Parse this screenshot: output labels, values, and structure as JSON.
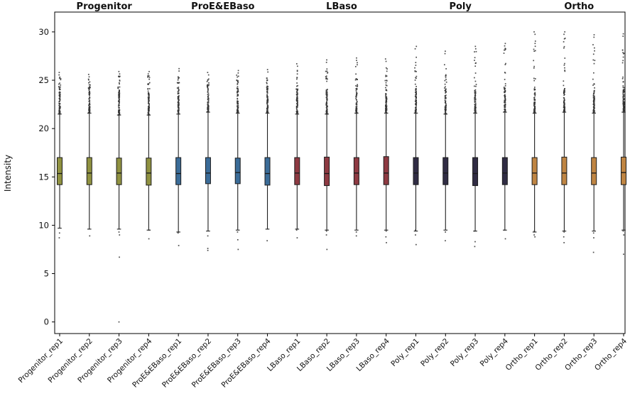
{
  "chart_data": {
    "type": "boxplot",
    "title": "",
    "xlabel": "",
    "ylabel": "Intensity",
    "ylim": [
      -1.2,
      32.05
    ],
    "yticks": [
      0,
      5,
      10,
      15,
      20,
      25,
      30
    ],
    "grid": false,
    "legend": "none",
    "group_titles": [
      {
        "label": "Progenitor",
        "color": "#8f9140"
      },
      {
        "label": "ProE&EBaso",
        "color": "#3b6c98"
      },
      {
        "label": "LBaso",
        "color": "#8e3a42"
      },
      {
        "label": "Poly",
        "color": "#302c44"
      },
      {
        "label": "Ortho",
        "color": "#bf8543"
      }
    ],
    "boxes": [
      {
        "label": "Progenitor_rep1",
        "group": 0,
        "q1": 14.2,
        "median": 15.35,
        "q3": 17.0,
        "whisker_low": 9.7,
        "whisker_high": 21.5,
        "outlier_max": 25.8,
        "outliers_low": [
          9.2,
          8.7
        ]
      },
      {
        "label": "Progenitor_rep2",
        "group": 0,
        "q1": 14.2,
        "median": 15.4,
        "q3": 17.0,
        "whisker_low": 9.6,
        "whisker_high": 21.6,
        "outlier_max": 25.6,
        "outliers_low": [
          8.9
        ]
      },
      {
        "label": "Progenitor_rep3",
        "group": 0,
        "q1": 14.2,
        "median": 15.4,
        "q3": 16.95,
        "whisker_low": 9.6,
        "whisker_high": 21.4,
        "outlier_max": 25.9,
        "outliers_low": [
          9.3,
          9.0,
          6.7,
          0.0
        ]
      },
      {
        "label": "Progenitor_rep4",
        "group": 0,
        "q1": 14.15,
        "median": 15.4,
        "q3": 16.95,
        "whisker_low": 9.5,
        "whisker_high": 21.4,
        "outlier_max": 25.9,
        "outliers_low": [
          9.5,
          8.6
        ]
      },
      {
        "label": "ProE&EBaso_rep1",
        "group": 1,
        "q1": 14.2,
        "median": 15.35,
        "q3": 17.0,
        "whisker_low": 9.3,
        "whisker_high": 21.5,
        "outlier_max": 26.2,
        "outliers_low": [
          9.2,
          7.9
        ]
      },
      {
        "label": "ProE&EBaso_rep2",
        "group": 1,
        "q1": 14.3,
        "median": 15.4,
        "q3": 17.0,
        "whisker_low": 9.4,
        "whisker_high": 21.7,
        "outlier_max": 25.8,
        "outliers_low": [
          8.9,
          7.6,
          7.4
        ]
      },
      {
        "label": "ProE&EBaso_rep3",
        "group": 1,
        "q1": 14.3,
        "median": 15.45,
        "q3": 16.95,
        "whisker_low": 9.5,
        "whisker_high": 21.6,
        "outlier_max": 26.0,
        "outliers_low": [
          9.3,
          8.5,
          7.5
        ]
      },
      {
        "label": "ProE&EBaso_rep4",
        "group": 1,
        "q1": 14.15,
        "median": 15.35,
        "q3": 17.0,
        "whisker_low": 9.6,
        "whisker_high": 21.6,
        "outlier_max": 26.1,
        "outliers_low": [
          8.4
        ]
      },
      {
        "label": "LBaso_rep1",
        "group": 2,
        "q1": 14.2,
        "median": 15.4,
        "q3": 17.0,
        "whisker_low": 9.6,
        "whisker_high": 21.5,
        "outlier_max": 26.7,
        "outliers_low": [
          9.5,
          8.7
        ]
      },
      {
        "label": "LBaso_rep2",
        "group": 2,
        "q1": 14.1,
        "median": 15.35,
        "q3": 17.05,
        "whisker_low": 9.5,
        "whisker_high": 21.5,
        "outlier_max": 27.1,
        "outliers_low": [
          9.4,
          9.0,
          7.5
        ]
      },
      {
        "label": "LBaso_rep3",
        "group": 2,
        "q1": 14.2,
        "median": 15.4,
        "q3": 17.0,
        "whisker_low": 9.5,
        "whisker_high": 21.6,
        "outlier_max": 27.3,
        "outliers_low": [
          9.3,
          8.9
        ]
      },
      {
        "label": "LBaso_rep4",
        "group": 2,
        "q1": 14.2,
        "median": 15.4,
        "q3": 17.1,
        "whisker_low": 9.5,
        "whisker_high": 21.6,
        "outlier_max": 27.2,
        "outliers_low": [
          9.4,
          8.8,
          8.2
        ]
      },
      {
        "label": "Poly_rep1",
        "group": 3,
        "q1": 14.2,
        "median": 15.4,
        "q3": 17.0,
        "whisker_low": 9.4,
        "whisker_high": 21.6,
        "outlier_max": 28.5,
        "outliers_low": [
          9.5,
          9.0,
          8.0
        ]
      },
      {
        "label": "Poly_rep2",
        "group": 3,
        "q1": 14.2,
        "median": 15.4,
        "q3": 17.0,
        "whisker_low": 9.5,
        "whisker_high": 21.5,
        "outlier_max": 28.0,
        "outliers_low": [
          9.3,
          8.4
        ]
      },
      {
        "label": "Poly_rep3",
        "group": 3,
        "q1": 14.1,
        "median": 15.35,
        "q3": 17.0,
        "whisker_low": 9.4,
        "whisker_high": 21.6,
        "outlier_max": 28.5,
        "outliers_low": [
          9.4,
          8.3,
          7.8
        ]
      },
      {
        "label": "Poly_rep4",
        "group": 3,
        "q1": 14.2,
        "median": 15.4,
        "q3": 17.0,
        "whisker_low": 9.5,
        "whisker_high": 21.7,
        "outlier_max": 28.8,
        "outliers_low": [
          9.5,
          8.6
        ]
      },
      {
        "label": "Ortho_rep1",
        "group": 4,
        "q1": 14.2,
        "median": 15.4,
        "q3": 17.0,
        "whisker_low": 9.3,
        "whisker_high": 21.6,
        "outlier_max": 30.0,
        "outliers_low": [
          9.4,
          9.0,
          8.8
        ]
      },
      {
        "label": "Ortho_rep2",
        "group": 4,
        "q1": 14.2,
        "median": 15.4,
        "q3": 17.05,
        "whisker_low": 9.4,
        "whisker_high": 21.7,
        "outlier_max": 30.0,
        "outliers_low": [
          9.3,
          8.8,
          8.2
        ]
      },
      {
        "label": "Ortho_rep3",
        "group": 4,
        "q1": 14.2,
        "median": 15.4,
        "q3": 17.0,
        "whisker_low": 9.4,
        "whisker_high": 21.6,
        "outlier_max": 29.7,
        "outliers_low": [
          9.2,
          8.7,
          7.2
        ]
      },
      {
        "label": "Ortho_rep4",
        "group": 4,
        "q1": 14.2,
        "median": 15.45,
        "q3": 17.05,
        "whisker_low": 9.5,
        "whisker_high": 21.7,
        "outlier_max": 29.8,
        "outliers_low": [
          9.4,
          9.0,
          7.0
        ]
      }
    ]
  },
  "style": {
    "background": "#ffffff",
    "axis_color": "#000000",
    "box_edge_color": "#1e1e1e",
    "median_color": "#1a1a1a",
    "whisker_color": "#1e1e1e",
    "flier_color": "#333333",
    "tick_label_color": "#111111"
  }
}
